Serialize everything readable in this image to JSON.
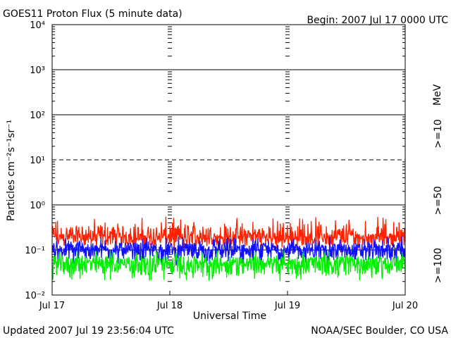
{
  "header": {
    "title": "GOES11 Proton Flux (5 minute data)",
    "begin": "Begin: 2007 Jul 17 0000 UTC"
  },
  "footer": {
    "updated": "Updated 2007 Jul 19 23:56:04 UTC",
    "source": "NOAA/SEC Boulder, CO USA"
  },
  "chart_data": {
    "type": "line",
    "title": "GOES11 Proton Flux (5 minute data)",
    "xlabel": "Universal Time",
    "ylabel": "Particles cm⁻²s⁻¹sr⁻¹",
    "y_scale": "log",
    "ylim": [
      0.01,
      10000
    ],
    "x_ticks": [
      "Jul 17",
      "Jul 18",
      "Jul 19",
      "Jul 20"
    ],
    "y_ticks": [
      "10⁻²",
      "10⁻¹",
      "10⁰",
      "10¹",
      "10²",
      "10³",
      "10⁴"
    ],
    "y_tick_values": [
      0.01,
      0.1,
      1,
      10,
      100,
      1000,
      10000
    ],
    "threshold_lines": [
      {
        "value": 10,
        "style": "dashed"
      }
    ],
    "unit_label": "MeV",
    "series": [
      {
        "name": ">=10",
        "color": "#ff2000",
        "baseline": 0.17,
        "range": [
          0.1,
          0.55
        ]
      },
      {
        "name": ">=50",
        "color": "#1010ff",
        "baseline": 0.09,
        "range": [
          0.045,
          0.2
        ]
      },
      {
        "name": ">=100",
        "color": "#00ee00",
        "baseline": 0.045,
        "range": [
          0.02,
          0.1
        ]
      }
    ]
  }
}
